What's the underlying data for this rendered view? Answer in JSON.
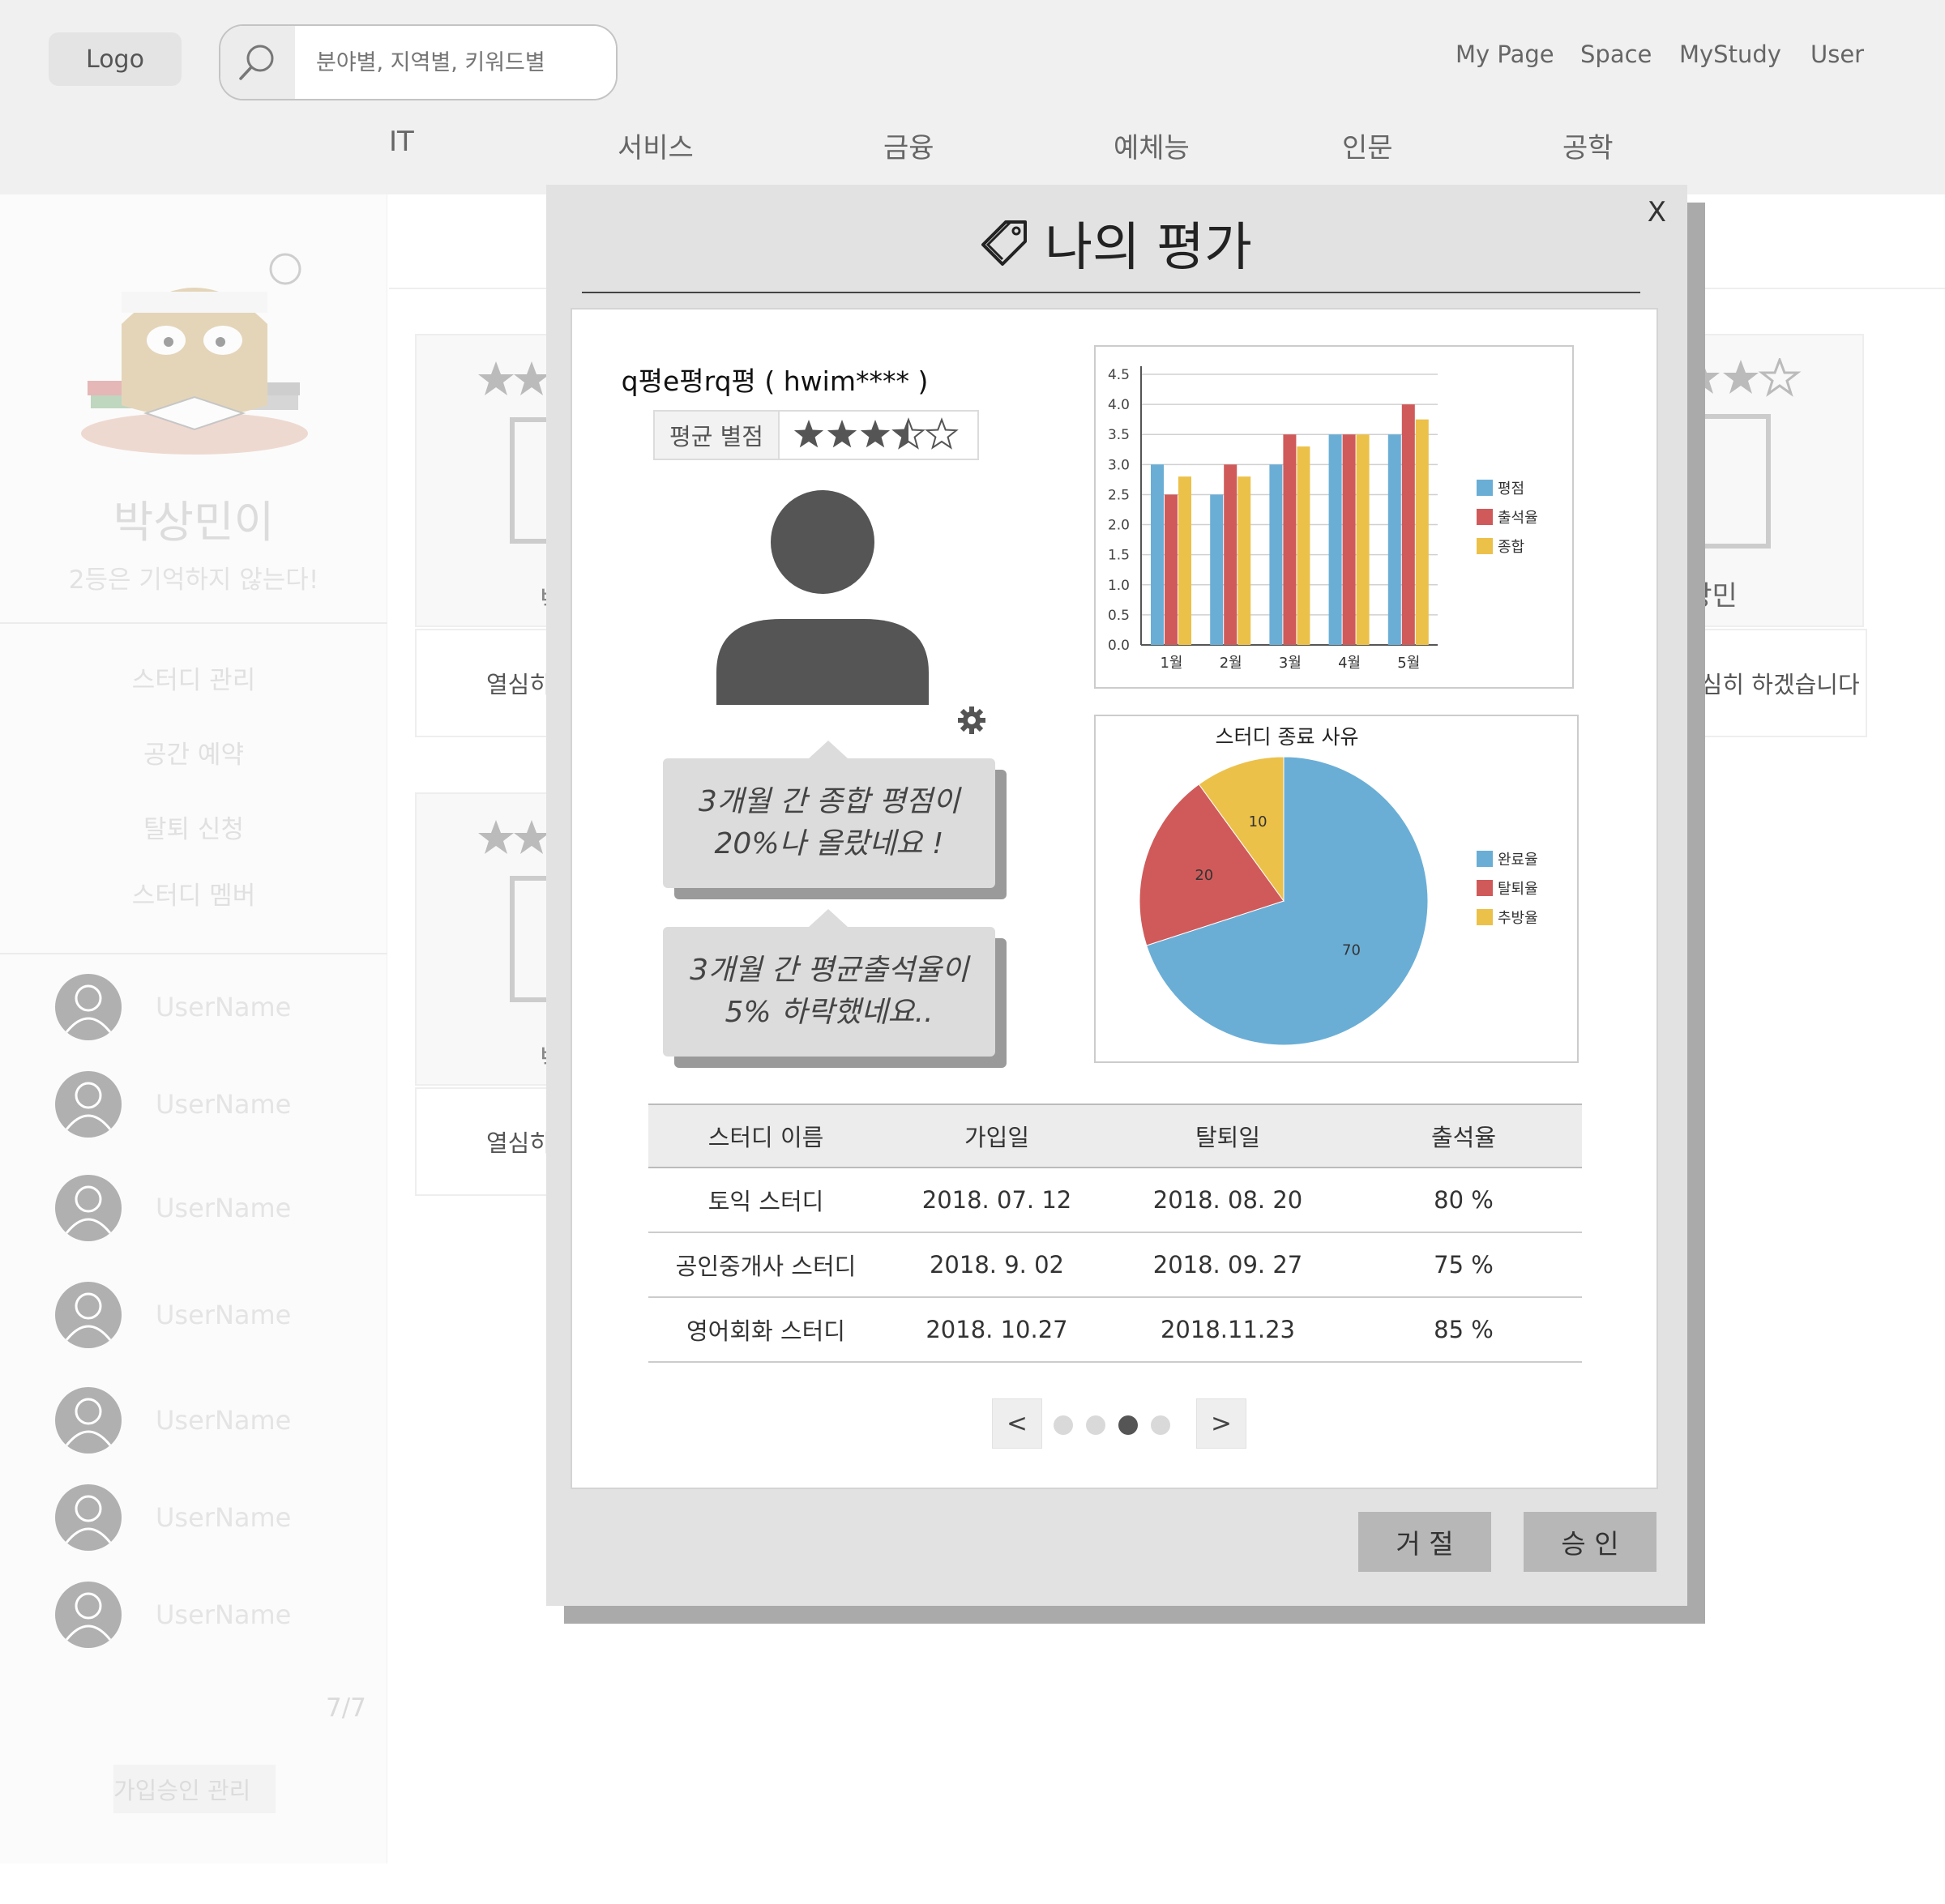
{
  "header": {
    "logo": "Logo",
    "search": {
      "placeholder": "분야별, 지역별, 키워드별",
      "icon": "search-icon"
    },
    "top_links": [
      "My Page",
      "Space",
      "MyStudy",
      "User"
    ],
    "nav": [
      "IT",
      "서비스",
      "금융",
      "예체능",
      "인문",
      "공학"
    ]
  },
  "sidebar": {
    "name": "박상민이",
    "motto": "2등은 기억하지 않는다!",
    "menu": [
      "스터디 관리",
      "공간 예약",
      "탈퇴 신청",
      "스터디 멤버"
    ],
    "members": [
      "UserName",
      "UserName",
      "UserName",
      "UserName",
      "UserName",
      "UserName",
      "UserName"
    ],
    "page": "7/7",
    "approve": "가입승인 관리"
  },
  "background_cards": {
    "left_text": "열심히",
    "left_char": "박",
    "right_name": "박상민",
    "right_text": "열심히 하겠습니다"
  },
  "modal": {
    "close": "X",
    "title": "나의 평가",
    "user": "q평e평rq평 ( hwim**** )",
    "rating_label": "평균 별점",
    "rating_value": 3.5,
    "rating_max": 5,
    "bubble1_line1": "3개월 간 종합 평점이",
    "bubble1_line2": "20%나 올랐네요 !",
    "bubble2_line1": "3개월 간  평균출석율이",
    "bubble2_line2": "5% 하락했네요..",
    "table": {
      "headers": [
        "스터디 이름",
        "가입일",
        "탈퇴일",
        "출석율"
      ],
      "rows": [
        [
          "토익 스터디",
          "2018. 07. 12",
          "2018. 08. 20",
          "80 %"
        ],
        [
          "공인중개사 스터디",
          "2018. 9. 02",
          "2018. 09. 27",
          "75 %"
        ],
        [
          "영어회화 스터디",
          "2018. 10.27",
          "2018.11.23",
          "85 %"
        ]
      ]
    },
    "pager": {
      "prev": "<",
      "next": ">",
      "pages": 4,
      "active": 3
    },
    "reject": "거 절",
    "approve": "승 인"
  },
  "chart_data": [
    {
      "type": "bar",
      "categories": [
        "1월",
        "2월",
        "3월",
        "4월",
        "5월"
      ],
      "series": [
        {
          "name": "평점",
          "color": "#6aaed6",
          "values": [
            3.0,
            2.5,
            3.0,
            3.5,
            3.5
          ]
        },
        {
          "name": "출석율",
          "color": "#d05a5a",
          "values": [
            2.5,
            3.0,
            3.5,
            3.5,
            4.0
          ]
        },
        {
          "name": "종합",
          "color": "#ecc14a",
          "values": [
            2.8,
            2.8,
            3.3,
            3.5,
            3.75
          ]
        }
      ],
      "yticks": [
        "0.0",
        "0.5",
        "1.0",
        "1.5",
        "2.0",
        "2.5",
        "3.0",
        "3.5",
        "4.0",
        "4.5"
      ],
      "ylim": [
        0,
        4.5
      ],
      "grid": true,
      "legend": "right"
    },
    {
      "type": "pie",
      "title": "스터디 종료 사유",
      "labels": [
        "완료율",
        "탈퇴율",
        "추방율"
      ],
      "values": [
        70,
        20,
        10
      ],
      "value_labels": [
        "70",
        "20",
        "10"
      ],
      "colors": [
        "#6aaed6",
        "#d05a5a",
        "#ecc14a"
      ],
      "legend": "right"
    }
  ]
}
